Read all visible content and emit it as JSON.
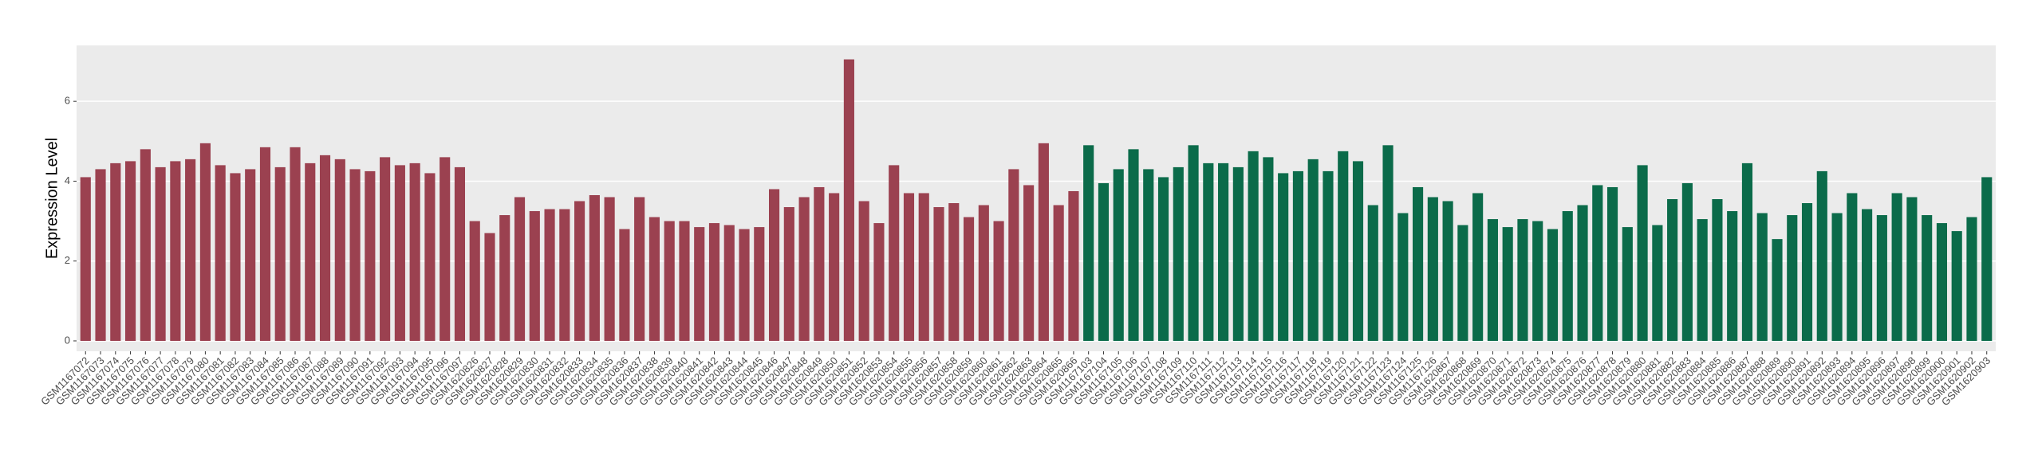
{
  "chart_data": {
    "type": "bar",
    "y_label": "Expression Level",
    "categories": [
      "GSM1167072",
      "GSM1167073",
      "GSM1167074",
      "GSM1167075",
      "GSM1167076",
      "GSM1167077",
      "GSM1167078",
      "GSM1167079",
      "GSM1167080",
      "GSM1167081",
      "GSM1167082",
      "GSM1167083",
      "GSM1167084",
      "GSM1167085",
      "GSM1167086",
      "GSM1167087",
      "GSM1167088",
      "GSM1167089",
      "GSM1167090",
      "GSM1167091",
      "GSM1167092",
      "GSM1167093",
      "GSM1167094",
      "GSM1167095",
      "GSM1167096",
      "GSM1167097",
      "GSM1620826",
      "GSM1620827",
      "GSM1620828",
      "GSM1620829",
      "GSM1620830",
      "GSM1620831",
      "GSM1620832",
      "GSM1620833",
      "GSM1620834",
      "GSM1620835",
      "GSM1620836",
      "GSM1620837",
      "GSM1620838",
      "GSM1620839",
      "GSM1620840",
      "GSM1620841",
      "GSM1620842",
      "GSM1620843",
      "GSM1620844",
      "GSM1620845",
      "GSM1620846",
      "GSM1620847",
      "GSM1620848",
      "GSM1620849",
      "GSM1620850",
      "GSM1620851",
      "GSM1620852",
      "GSM1620853",
      "GSM1620854",
      "GSM1620855",
      "GSM1620856",
      "GSM1620857",
      "GSM1620858",
      "GSM1620859",
      "GSM1620860",
      "GSM1620861",
      "GSM1620862",
      "GSM1620863",
      "GSM1620864",
      "GSM1620865",
      "GSM1620866",
      "GSM1167103",
      "GSM1167104",
      "GSM1167105",
      "GSM1167106",
      "GSM1167107",
      "GSM1167108",
      "GSM1167109",
      "GSM1167110",
      "GSM1167111",
      "GSM1167112",
      "GSM1167113",
      "GSM1167114",
      "GSM1167115",
      "GSM1167116",
      "GSM1167117",
      "GSM1167118",
      "GSM1167119",
      "GSM1167120",
      "GSM1167121",
      "GSM1167122",
      "GSM1167123",
      "GSM1167124",
      "GSM1167125",
      "GSM1167126",
      "GSM1620867",
      "GSM1620868",
      "GSM1620869",
      "GSM1620870",
      "GSM1620871",
      "GSM1620872",
      "GSM1620873",
      "GSM1620874",
      "GSM1620875",
      "GSM1620876",
      "GSM1620877",
      "GSM1620878",
      "GSM1620879",
      "GSM1620880",
      "GSM1620881",
      "GSM1620882",
      "GSM1620883",
      "GSM1620884",
      "GSM1620885",
      "GSM1620886",
      "GSM1620887",
      "GSM1620888",
      "GSM1620889",
      "GSM1620890",
      "GSM1620891",
      "GSM1620892",
      "GSM1620893",
      "GSM1620894",
      "GSM1620895",
      "GSM1620896",
      "GSM1620897",
      "GSM1620898",
      "GSM1620899",
      "GSM1620900",
      "GSM1620901",
      "GSM1620902",
      "GSM1620903"
    ],
    "values": [
      4.1,
      4.3,
      4.45,
      4.5,
      4.8,
      4.35,
      4.5,
      4.55,
      4.95,
      4.4,
      4.2,
      4.3,
      4.85,
      4.35,
      4.85,
      4.45,
      4.65,
      4.55,
      4.3,
      4.25,
      4.6,
      4.4,
      4.45,
      4.2,
      4.6,
      4.35,
      3.0,
      2.7,
      3.15,
      3.6,
      3.25,
      3.3,
      3.3,
      3.5,
      3.65,
      3.6,
      2.8,
      3.6,
      3.1,
      3.0,
      3.0,
      2.85,
      2.95,
      2.9,
      2.8,
      2.85,
      3.8,
      3.35,
      3.6,
      3.85,
      3.7,
      7.05,
      3.5,
      2.95,
      4.4,
      3.7,
      3.7,
      3.35,
      3.45,
      3.1,
      3.4,
      3.0,
      4.3,
      3.9,
      4.95,
      3.4,
      3.75,
      4.9,
      3.95,
      4.3,
      4.8,
      4.3,
      4.1,
      4.35,
      4.9,
      4.45,
      4.45,
      4.35,
      4.75,
      4.6,
      4.2,
      4.25,
      4.55,
      4.25,
      4.75,
      4.5,
      3.4,
      4.9,
      3.2,
      3.85,
      3.6,
      3.5,
      2.9,
      3.7,
      3.05,
      2.85,
      3.05,
      3.0,
      2.8,
      3.25,
      3.4,
      3.9,
      3.85,
      2.85,
      4.4,
      2.9,
      3.55,
      3.95,
      3.05,
      3.55,
      3.25,
      4.45,
      3.2,
      2.55,
      3.15,
      3.45,
      4.25,
      3.2,
      3.7,
      3.3,
      3.15,
      3.7,
      3.6,
      3.15,
      2.95,
      2.75,
      3.1,
      4.1
    ],
    "colors": [
      "#9b4150",
      "#9b4150",
      "#9b4150",
      "#9b4150",
      "#9b4150",
      "#9b4150",
      "#9b4150",
      "#9b4150",
      "#9b4150",
      "#9b4150",
      "#9b4150",
      "#9b4150",
      "#9b4150",
      "#9b4150",
      "#9b4150",
      "#9b4150",
      "#9b4150",
      "#9b4150",
      "#9b4150",
      "#9b4150",
      "#9b4150",
      "#9b4150",
      "#9b4150",
      "#9b4150",
      "#9b4150",
      "#9b4150",
      "#9b4150",
      "#9b4150",
      "#9b4150",
      "#9b4150",
      "#9b4150",
      "#9b4150",
      "#9b4150",
      "#9b4150",
      "#9b4150",
      "#9b4150",
      "#9b4150",
      "#9b4150",
      "#9b4150",
      "#9b4150",
      "#9b4150",
      "#9b4150",
      "#9b4150",
      "#9b4150",
      "#9b4150",
      "#9b4150",
      "#9b4150",
      "#9b4150",
      "#9b4150",
      "#9b4150",
      "#9b4150",
      "#9b4150",
      "#9b4150",
      "#9b4150",
      "#9b4150",
      "#9b4150",
      "#9b4150",
      "#9b4150",
      "#9b4150",
      "#9b4150",
      "#9b4150",
      "#9b4150",
      "#9b4150",
      "#9b4150",
      "#9b4150",
      "#9b4150",
      "#9b4150",
      "#0b6b4a",
      "#0b6b4a",
      "#0b6b4a",
      "#0b6b4a",
      "#0b6b4a",
      "#0b6b4a",
      "#0b6b4a",
      "#0b6b4a",
      "#0b6b4a",
      "#0b6b4a",
      "#0b6b4a",
      "#0b6b4a",
      "#0b6b4a",
      "#0b6b4a",
      "#0b6b4a",
      "#0b6b4a",
      "#0b6b4a",
      "#0b6b4a",
      "#0b6b4a",
      "#0b6b4a",
      "#0b6b4a",
      "#0b6b4a",
      "#0b6b4a",
      "#0b6b4a",
      "#0b6b4a",
      "#0b6b4a",
      "#0b6b4a",
      "#0b6b4a",
      "#0b6b4a",
      "#0b6b4a",
      "#0b6b4a",
      "#0b6b4a",
      "#0b6b4a",
      "#0b6b4a",
      "#0b6b4a",
      "#0b6b4a",
      "#0b6b4a",
      "#0b6b4a",
      "#0b6b4a",
      "#0b6b4a",
      "#0b6b4a",
      "#0b6b4a",
      "#0b6b4a",
      "#0b6b4a",
      "#0b6b4a",
      "#0b6b4a",
      "#0b6b4a",
      "#0b6b4a",
      "#0b6b4a",
      "#0b6b4a",
      "#0b6b4a",
      "#0b6b4a",
      "#0b6b4a",
      "#0b6b4a",
      "#0b6b4a",
      "#0b6b4a",
      "#0b6b4a",
      "#0b6b4a",
      "#0b6b4a",
      "#0b6b4a",
      "#0b6b4a"
    ],
    "ylim": [
      -0.26,
      7.4
    ],
    "yticks": [
      0,
      2,
      4,
      6
    ],
    "grid": true
  }
}
